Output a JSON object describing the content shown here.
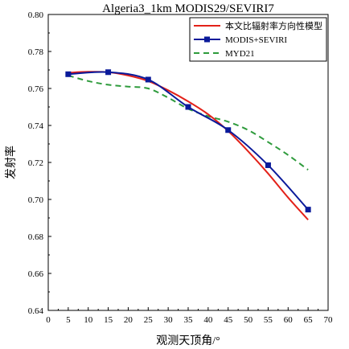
{
  "chart_data": {
    "type": "line",
    "title": "Algeria3_1km MODIS29/SEVIRI7",
    "xlabel": "观测天顶角/°",
    "ylabel": "发射率",
    "xlim": [
      0,
      70
    ],
    "ylim": [
      0.64,
      0.8
    ],
    "xticks": [
      0,
      5,
      10,
      15,
      20,
      25,
      30,
      35,
      40,
      45,
      50,
      55,
      60,
      65,
      70
    ],
    "yticks": [
      0.64,
      0.66,
      0.68,
      0.7,
      0.72,
      0.74,
      0.76,
      0.78,
      0.8
    ],
    "xtick_labels": [
      "0",
      "5",
      "10",
      "15",
      "20",
      "25",
      "30",
      "35",
      "40",
      "45",
      "50",
      "55",
      "60",
      "65",
      "70"
    ],
    "ytick_labels": [
      "0.64",
      "0.66",
      "0.68",
      "0.70",
      "0.72",
      "0.74",
      "0.76",
      "0.78",
      "0.80"
    ],
    "grid": false,
    "legend_position": "top-right",
    "series": [
      {
        "name": "本文比辐射率方向性模型",
        "color": "#e32119",
        "style": "solid",
        "marker": "none",
        "x": [
          5,
          10,
          15,
          20,
          25,
          30,
          35,
          40,
          45,
          50,
          55,
          60,
          65
        ],
        "y": [
          0.7685,
          0.769,
          0.7688,
          0.767,
          0.764,
          0.759,
          0.753,
          0.746,
          0.737,
          0.726,
          0.714,
          0.701,
          0.689
        ]
      },
      {
        "name": "MODIS+SEVIRI",
        "color": "#0a1a9a",
        "style": "solid",
        "marker": "square",
        "x": [
          5,
          15,
          25,
          35,
          45,
          55,
          65
        ],
        "y": [
          0.7677,
          0.7688,
          0.7648,
          0.75,
          0.7375,
          0.7185,
          0.6945
        ]
      },
      {
        "name": "MYD21",
        "color": "#2e9b3c",
        "style": "dashed",
        "marker": "none",
        "x": [
          5,
          10,
          15,
          20,
          25,
          30,
          35,
          40,
          45,
          50,
          55,
          60,
          65
        ],
        "y": [
          0.767,
          0.764,
          0.762,
          0.761,
          0.76,
          0.755,
          0.749,
          0.745,
          0.742,
          0.7375,
          0.731,
          0.724,
          0.716
        ]
      }
    ]
  }
}
